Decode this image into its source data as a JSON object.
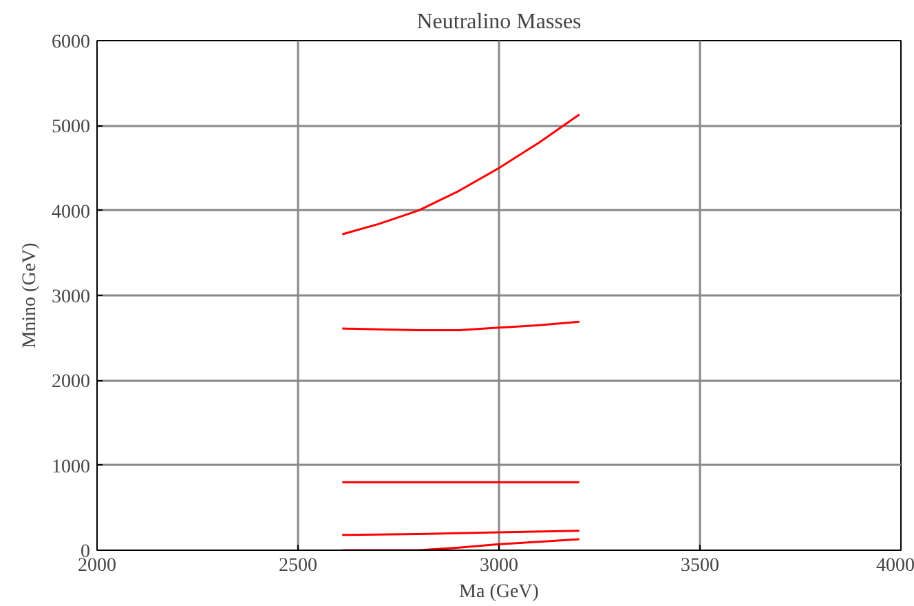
{
  "chart_data": {
    "type": "line",
    "title": "Neutralino Masses",
    "xlabel": "Ma (GeV)",
    "ylabel": "Mnino (GeV)",
    "xlim": [
      2000,
      4000
    ],
    "ylim": [
      0,
      6000
    ],
    "xticks": [
      2000,
      2500,
      3000,
      3500,
      4000
    ],
    "yticks": [
      0,
      1000,
      2000,
      3000,
      4000,
      5000,
      6000
    ],
    "grid": true,
    "marker": "none",
    "line_style": "solid",
    "series": [
      {
        "color": "#ff0000",
        "x": [
          2610,
          2700,
          2800,
          2900,
          3000,
          3100,
          3200
        ],
        "values": [
          3720,
          3840,
          4000,
          4230,
          4500,
          4800,
          5130
        ]
      },
      {
        "color": "#ff0000",
        "x": [
          2610,
          2700,
          2800,
          2900,
          3000,
          3100,
          3200
        ],
        "values": [
          2610,
          2600,
          2590,
          2590,
          2620,
          2650,
          2690
        ]
      },
      {
        "color": "#ff0000",
        "x": [
          2610,
          3200
        ],
        "values": [
          800,
          800
        ]
      },
      {
        "color": "#ff0000",
        "x": [
          2610,
          2800,
          3000,
          3200
        ],
        "values": [
          180,
          190,
          210,
          230
        ]
      },
      {
        "color": "#ff0000",
        "x": [
          2610,
          2800,
          2900,
          3000,
          3100,
          3200
        ],
        "values": [
          0,
          0,
          30,
          70,
          100,
          130
        ]
      }
    ]
  }
}
